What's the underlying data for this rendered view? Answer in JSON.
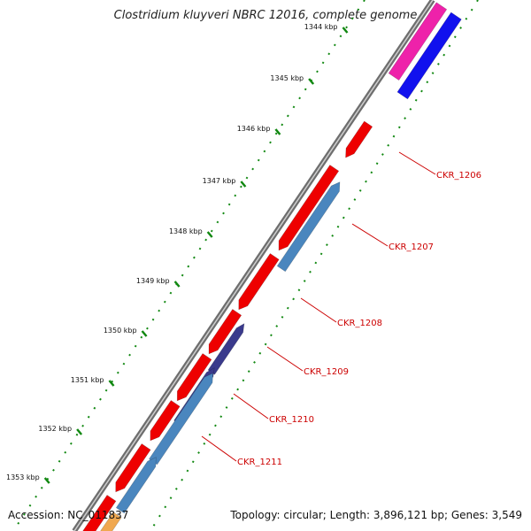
{
  "title": "Clostridium kluyveri NBRC 12016, complete genome",
  "footer": {
    "accession": "Accession: NC_011837",
    "summary": "Topology: circular; Length: 3,896,121 bp; Genes: 3,549"
  },
  "colors": {
    "forward_gene": "#ee0000",
    "reverse_gene": "#4a86be",
    "reverse_dark": "#3a3a8c",
    "magenta_gene": "#ee22aa",
    "blue_gene": "#1111ee",
    "backbone": "#888888",
    "tick": "#118811",
    "label": "#cc0000"
  },
  "ticks": [
    "1344 kbp",
    "1345 kbp",
    "1346 kbp",
    "1347 kbp",
    "1348 kbp",
    "1349 kbp",
    "1350 kbp",
    "1351 kbp",
    "1352 kbp",
    "1353 kbp"
  ],
  "gene_labels": [
    "CKR_1206",
    "CKR_1207",
    "CKR_1208",
    "CKR_1209",
    "CKR_1210",
    "CKR_1211"
  ]
}
